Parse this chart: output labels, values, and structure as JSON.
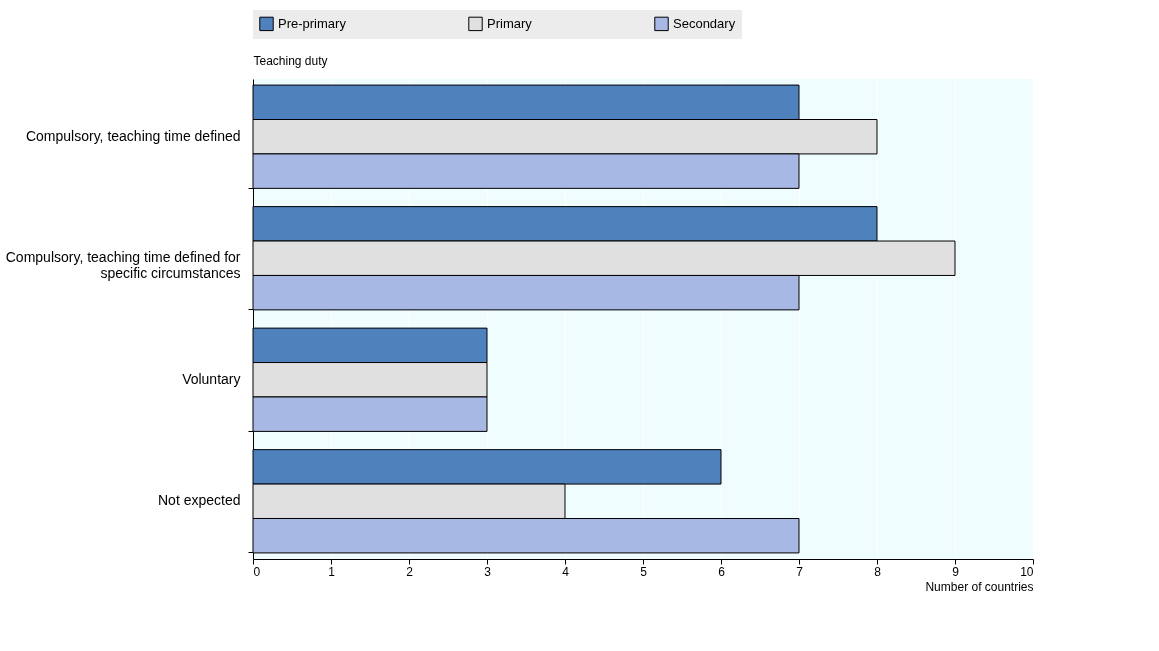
{
  "chart_data": {
    "type": "bar",
    "orientation": "horizontal",
    "ylabel": "Teaching duty",
    "xlabel": "Number of countries",
    "categories": [
      "Compulsory, teaching time defined",
      "Compulsory, teaching time defined for specific circumstances",
      "Voluntary",
      "Not expected"
    ],
    "series": [
      {
        "name": "Pre-primary",
        "color": "#4f81bd",
        "values": [
          7,
          8,
          3,
          6
        ]
      },
      {
        "name": "Primary",
        "color": "#e0e0e0",
        "values": [
          8,
          9,
          3,
          4
        ]
      },
      {
        "name": "Secondary",
        "color": "#a8b8e4",
        "values": [
          7,
          7,
          3,
          7
        ]
      }
    ],
    "xlim": [
      0,
      10
    ],
    "xticks": [
      0,
      1,
      2,
      3,
      4,
      5,
      6,
      7,
      8,
      9,
      10
    ],
    "grid": "x",
    "legend": "top"
  }
}
